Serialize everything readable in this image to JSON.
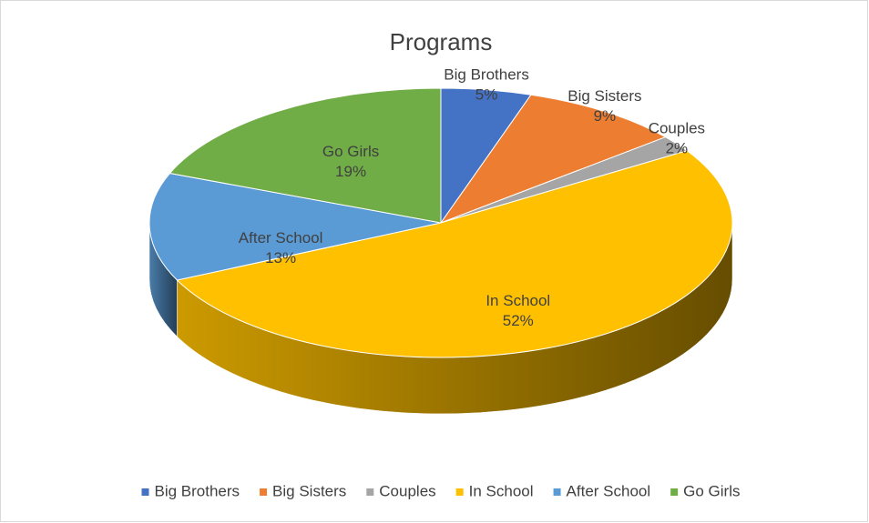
{
  "chart_data": {
    "type": "pie",
    "title": "Programs",
    "categories": [
      "Big Brothers",
      "Big Sisters",
      "Couples",
      "In School",
      "After School",
      "Go Girls"
    ],
    "values": [
      5,
      9,
      2,
      52,
      13,
      19
    ],
    "value_labels": [
      "5%",
      "9%",
      "2%",
      "52%",
      "13%",
      "19%"
    ],
    "colors": [
      "#4472c4",
      "#ed7d31",
      "#a5a5a5",
      "#ffc000",
      "#5b9bd5",
      "#70ad47"
    ],
    "legend": "bottom"
  }
}
